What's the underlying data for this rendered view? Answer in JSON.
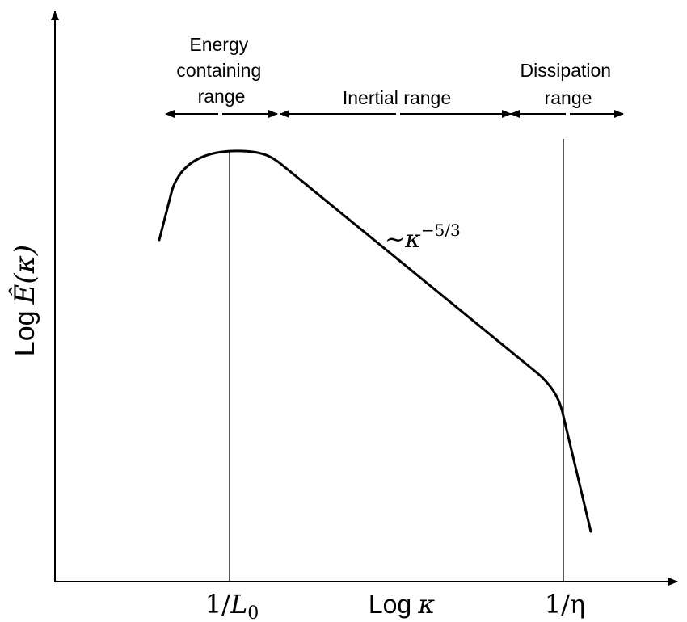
{
  "axes": {
    "y_label_prefix": "Log",
    "y_label_symbol": "Ê(κ)",
    "x_label_prefix": "Log",
    "x_label_symbol": "κ"
  },
  "x_ticks": {
    "integral_scale": {
      "num": "1/",
      "var": "L",
      "sub": "0"
    },
    "kolmogorov_scale": "1/η"
  },
  "ranges": {
    "energy_containing": [
      "Energy",
      "containing",
      "range"
    ],
    "inertial": "Inertial range",
    "dissipation": [
      "Dissipation",
      "range"
    ]
  },
  "slope_annotation": {
    "prefix": "~κ",
    "exponent": "−5/3"
  },
  "style": {
    "line_color": "#000000",
    "background": "#ffffff"
  }
}
